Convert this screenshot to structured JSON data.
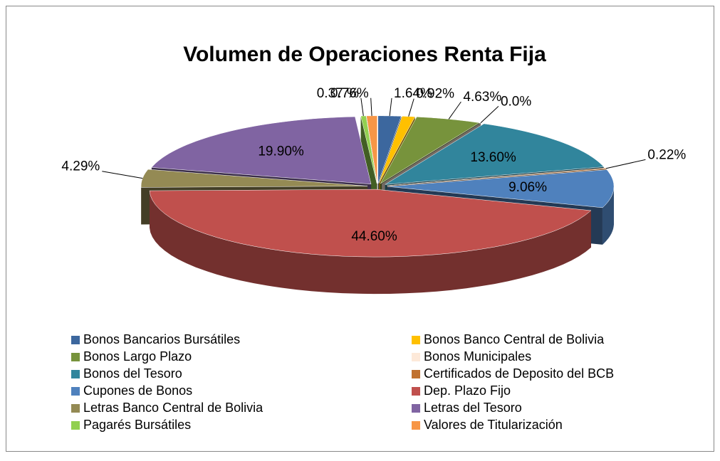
{
  "chart_data": {
    "type": "pie",
    "title": "Volumen de Operaciones Renta Fija",
    "categories": [
      "Bonos Bancarios Bursátiles",
      "Bonos Banco Central de Bolivia",
      "Bonos Largo Plazo",
      "Bonos Municipales",
      "Bonos del Tesoro",
      "Certificados de Deposito del BCB",
      "Cupones de Bonos",
      "Dep. Plazo Fijo",
      "Letras Banco Central de Bolivia",
      "Letras del Tesoro",
      "Pagarés Bursátiles",
      "Valores de Titularización"
    ],
    "values": [
      1.64,
      0.92,
      4.63,
      0,
      13.6,
      0.22,
      9.06,
      44.6,
      4.29,
      19.9,
      0.37,
      0.76
    ],
    "value_labels": [
      "1.64%",
      "0.92%",
      "4.63%",
      "0.0%",
      "13.60%",
      "0.22%",
      "9.06%",
      "44.60%",
      "4.29%",
      "19.90%",
      "0.37 %",
      "0.76%"
    ],
    "colors": [
      "#3c679e",
      "#ffc000",
      "#77933c",
      "#fde9d9",
      "#31859c",
      "#c0712f",
      "#4f81bd",
      "#c0504d",
      "#948a54",
      "#8064a2",
      "#92d050",
      "#f79646"
    ],
    "legend": "bottom"
  }
}
